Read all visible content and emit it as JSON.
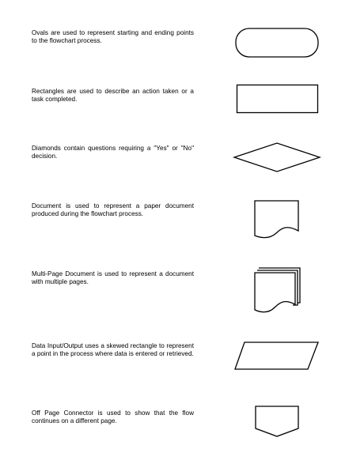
{
  "symbols": [
    {
      "description": "Ovals are used to represent starting and ending points to the flowchart process.",
      "icon": "oval-icon"
    },
    {
      "description": "Rectangles are used to describe an action taken or a task completed.",
      "icon": "rectangle-icon"
    },
    {
      "description": "Diamonds contain questions requiring a \"Yes\" or \"No\" decision.",
      "icon": "diamond-icon"
    },
    {
      "description": "Document is used to represent a paper document produced during the flowchart process.",
      "icon": "document-icon"
    },
    {
      "description": "Multi-Page Document is used to represent a document with multiple pages.",
      "icon": "multi-page-document-icon"
    },
    {
      "description": "Data Input/Output uses a skewed rectangle to represent a point in the process where data is entered or retrieved.",
      "icon": "data-input-output-icon"
    },
    {
      "description": "Off Page Connector is used to show that the flow continues on a different page.",
      "icon": "off-page-connector-icon"
    }
  ]
}
